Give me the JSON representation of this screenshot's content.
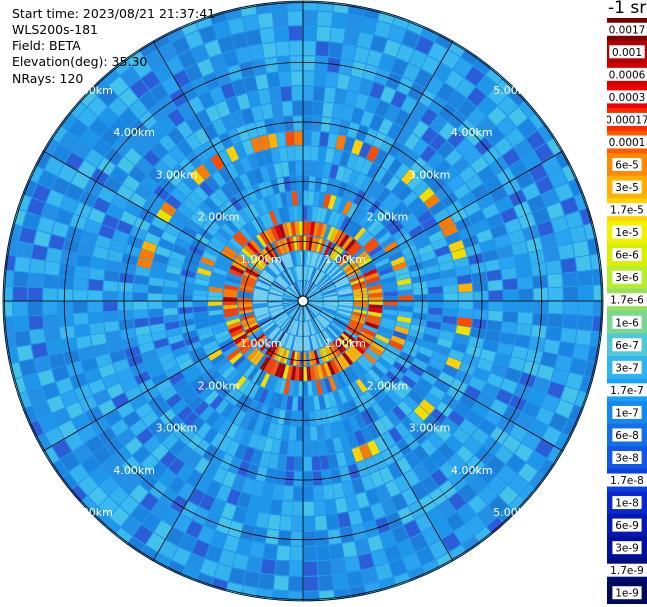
{
  "header": {
    "start_time": "Start time: 2023/08/21 21:37:41",
    "instrument": "WLS200s-181",
    "field": "Field: BETA",
    "elevation": "Elevation(deg): 35.30",
    "nrays": "NRays: 120"
  },
  "colorbar": {
    "unit_label": "-1 sr",
    "ticks": [
      "0.0017",
      "0.001",
      "0.0006",
      "0.0003",
      "0.00017",
      "0.0001",
      "6e-5",
      "3e-5",
      "1.7e-5",
      "1e-5",
      "6e-6",
      "3e-6",
      "1.7e-6",
      "1e-6",
      "6e-7",
      "3e-7",
      "1.7e-7",
      "1e-7",
      "6e-8",
      "3e-8",
      "1.7e-8",
      "1e-8",
      "6e-9",
      "3e-9",
      "1.7e-9",
      "1e-9"
    ],
    "colors": [
      "#7a0000",
      "#b40000",
      "#d40000",
      "#f00000",
      "#ff2a00",
      "#ff5a00",
      "#ff8a00",
      "#ffb000",
      "#ffd400",
      "#f2f200",
      "#d8f000",
      "#b8ec30",
      "#96e060",
      "#78d890",
      "#50c8d8",
      "#30b4ee",
      "#1aa0f2",
      "#1488ee",
      "#1470e6",
      "#1058e2",
      "#0a40dc",
      "#0828cc",
      "#0418b4",
      "#00109a",
      "#000c78",
      "#000858"
    ]
  },
  "chart_data": {
    "type": "heatmap",
    "projection": "polar PPI scan",
    "field": "BETA",
    "elevation_deg": 35.3,
    "nrays": 120,
    "range_rings_km": [
      1,
      2,
      3,
      4,
      5
    ],
    "ring_labels": [
      "1.00km",
      "2.00km",
      "3.00km",
      "4.00km",
      "5.00km"
    ],
    "background_level": "1e-7",
    "features": [
      {
        "description": "high-backscatter ring",
        "range_km": [
          1.0,
          1.6
        ],
        "max_value": "0.001"
      },
      {
        "description": "partial high-backscatter arc",
        "range_km": [
          3.0,
          3.4
        ],
        "max_value": "0.0003"
      }
    ]
  }
}
